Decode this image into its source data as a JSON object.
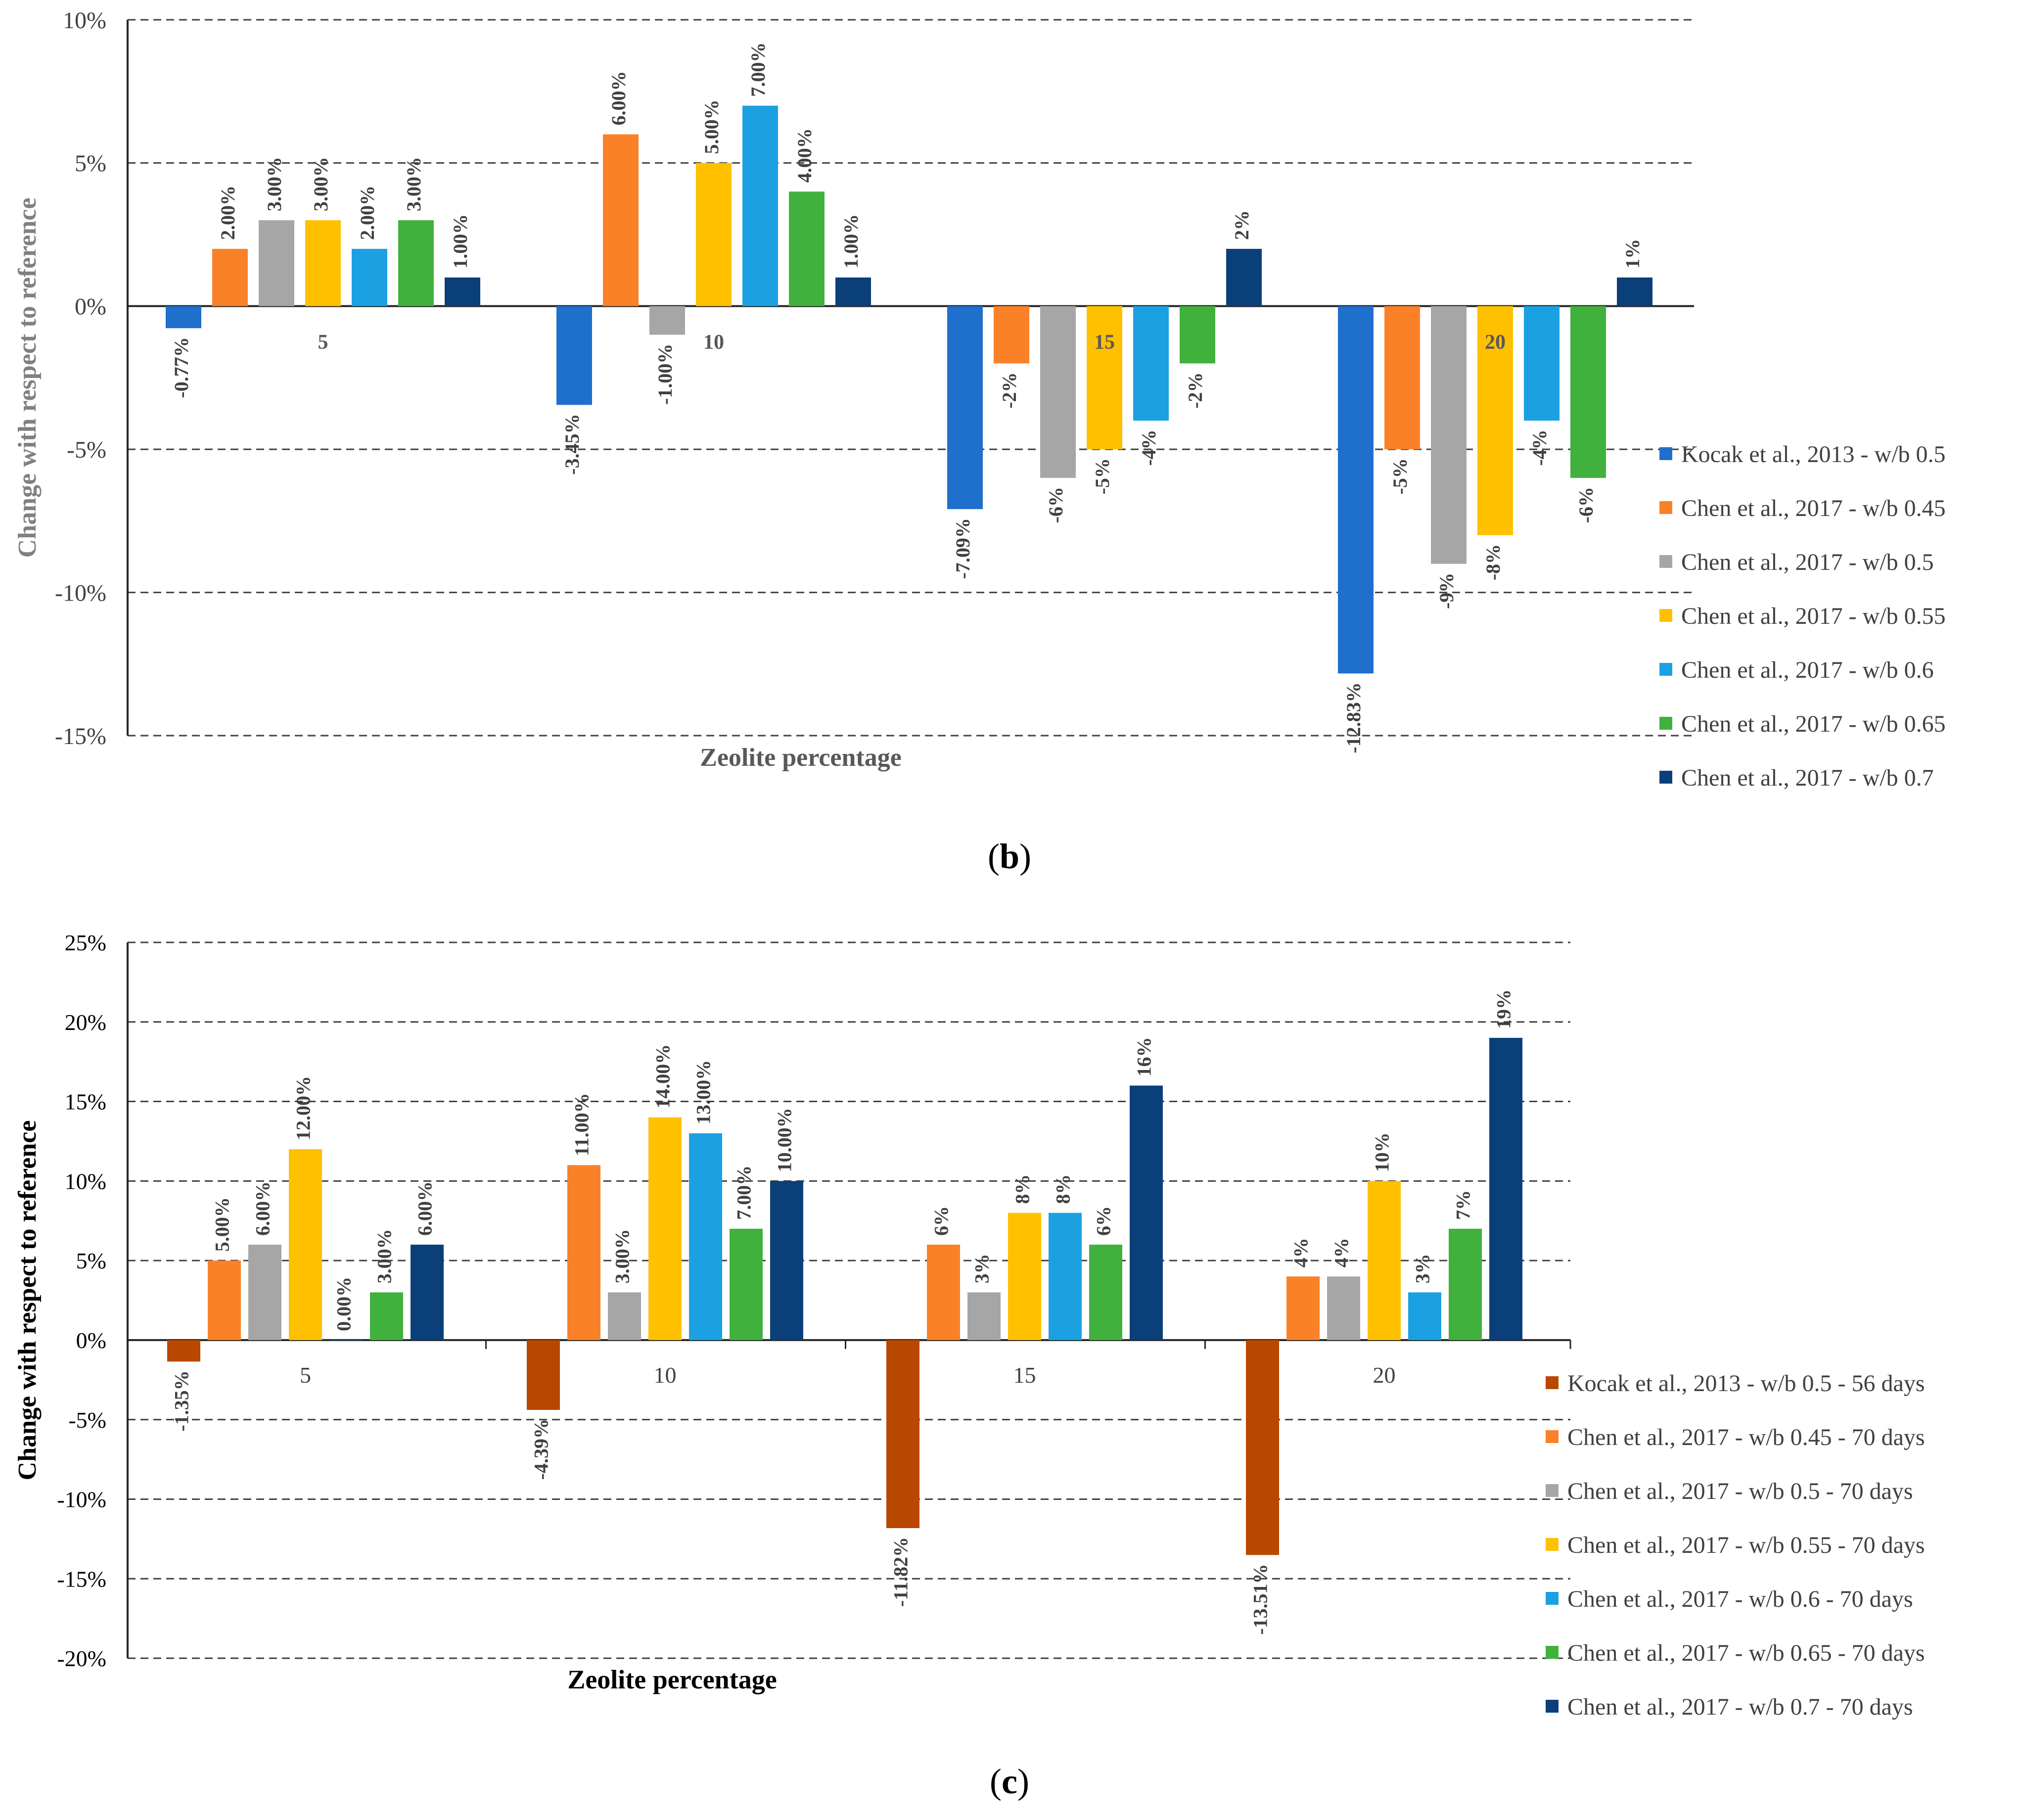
{
  "chart_data": [
    {
      "id": "b",
      "type": "bar",
      "panel_label": "b",
      "title": "",
      "xlabel": "Zeolite percentage",
      "ylabel": "Change with respect to reference",
      "ylim": [
        -15,
        10
      ],
      "yticks": [
        10,
        5,
        0,
        -5,
        -10,
        -15
      ],
      "ytick_labels": [
        "10%",
        "5%",
        "0%",
        "-5%",
        "-10%",
        "-15%"
      ],
      "grid": "dashed horizontal",
      "legend_position": "right",
      "categories": [
        "5",
        "10",
        "15",
        "20"
      ],
      "series": [
        {
          "name": "Kocak et al., 2013 - w/b 0.5",
          "color": "#1f6fcc",
          "values": [
            -0.77,
            -3.45,
            -7.09,
            -12.83
          ],
          "labels": [
            "-0.77%",
            "-3.45%",
            "-7.09%",
            "-12.83%"
          ]
        },
        {
          "name": "Chen et al., 2017 - w/b 0.45",
          "color": "#fb8128",
          "values": [
            2,
            6,
            -2,
            -5
          ],
          "labels": [
            "2.00%",
            "6.00%",
            "-2%",
            "-5%"
          ]
        },
        {
          "name": "Chen et al., 2017 - w/b 0.5",
          "color": "#a6a6a6",
          "values": [
            3,
            -1,
            -6,
            -9
          ],
          "labels": [
            "3.00%",
            "-1.00%",
            "-6%",
            "-9%"
          ]
        },
        {
          "name": "Chen et al., 2017 - w/b 0.55",
          "color": "#ffc000",
          "values": [
            3,
            5,
            -5,
            -8
          ],
          "labels": [
            "3.00%",
            "5.00%",
            "-5%",
            "-8%"
          ]
        },
        {
          "name": "Chen et al., 2017 - w/b 0.6",
          "color": "#1ba1e2",
          "values": [
            2,
            7,
            -4,
            -4
          ],
          "labels": [
            "2.00%",
            "7.00%",
            "-4%",
            "-4%"
          ]
        },
        {
          "name": "Chen et al., 2017 - w/b 0.65",
          "color": "#41b13d",
          "values": [
            3,
            4,
            -2,
            -6
          ],
          "labels": [
            "3.00%",
            "4.00%",
            "-2%",
            "-6%"
          ]
        },
        {
          "name": "Chen et al., 2017 - w/b 0.7",
          "color": "#0a3f7a",
          "values": [
            1,
            1,
            2,
            1
          ],
          "labels": [
            "1.00%",
            "1.00%",
            "2%",
            "1%"
          ]
        }
      ]
    },
    {
      "id": "c",
      "type": "bar",
      "panel_label": "c",
      "title": "",
      "xlabel": "Zeolite percentage",
      "ylabel": "Change with respect to reference",
      "ylim": [
        -20,
        25
      ],
      "yticks": [
        25,
        20,
        15,
        10,
        5,
        0,
        -5,
        -10,
        -15,
        -20
      ],
      "ytick_labels": [
        "25%",
        "20%",
        "15%",
        "10%",
        "5%",
        "0%",
        "-5%",
        "-10%",
        "-15%",
        "-20%"
      ],
      "grid": "dashed horizontal",
      "legend_position": "right",
      "categories": [
        "5",
        "10",
        "15",
        "20"
      ],
      "series": [
        {
          "name": "Kocak et al., 2013 - w/b 0.5 - 56 days",
          "color": "#b84700",
          "values": [
            -1.35,
            -4.39,
            -11.82,
            -13.51
          ],
          "labels": [
            "-1.35%",
            "-4.39%",
            "-11.82%",
            "-13.51%"
          ]
        },
        {
          "name": "Chen et al., 2017 - w/b 0.45 - 70 days",
          "color": "#fb8128",
          "values": [
            5,
            11,
            6,
            4
          ],
          "labels": [
            "5.00%",
            "11.00%",
            "6%",
            "4%"
          ]
        },
        {
          "name": "Chen et al., 2017 - w/b 0.5 - 70 days",
          "color": "#a6a6a6",
          "values": [
            6,
            3,
            3,
            4
          ],
          "labels": [
            "6.00%",
            "3.00%",
            "3%",
            "4%"
          ]
        },
        {
          "name": "Chen et al., 2017 - w/b 0.55 - 70 days",
          "color": "#ffc000",
          "values": [
            12,
            14,
            8,
            10
          ],
          "labels": [
            "12.00%",
            "14.00%",
            "8%",
            "10%"
          ]
        },
        {
          "name": "Chen et al., 2017 - w/b 0.6 - 70 days",
          "color": "#1ba1e2",
          "values": [
            0,
            13,
            8,
            3
          ],
          "labels": [
            "0.00%",
            "13.00%",
            "8%",
            "3%"
          ]
        },
        {
          "name": "Chen et al., 2017 - w/b 0.65 - 70 days",
          "color": "#41b13d",
          "values": [
            3,
            7,
            6,
            7
          ],
          "labels": [
            "3.00%",
            "7.00%",
            "6%",
            "7%"
          ]
        },
        {
          "name": "Chen et al., 2017 - w/b 0.7 - 70 days",
          "color": "#0a3f7a",
          "values": [
            6,
            10,
            16,
            19
          ],
          "labels": [
            "6.00%",
            "10.00%",
            "16%",
            "19%"
          ]
        }
      ]
    }
  ]
}
